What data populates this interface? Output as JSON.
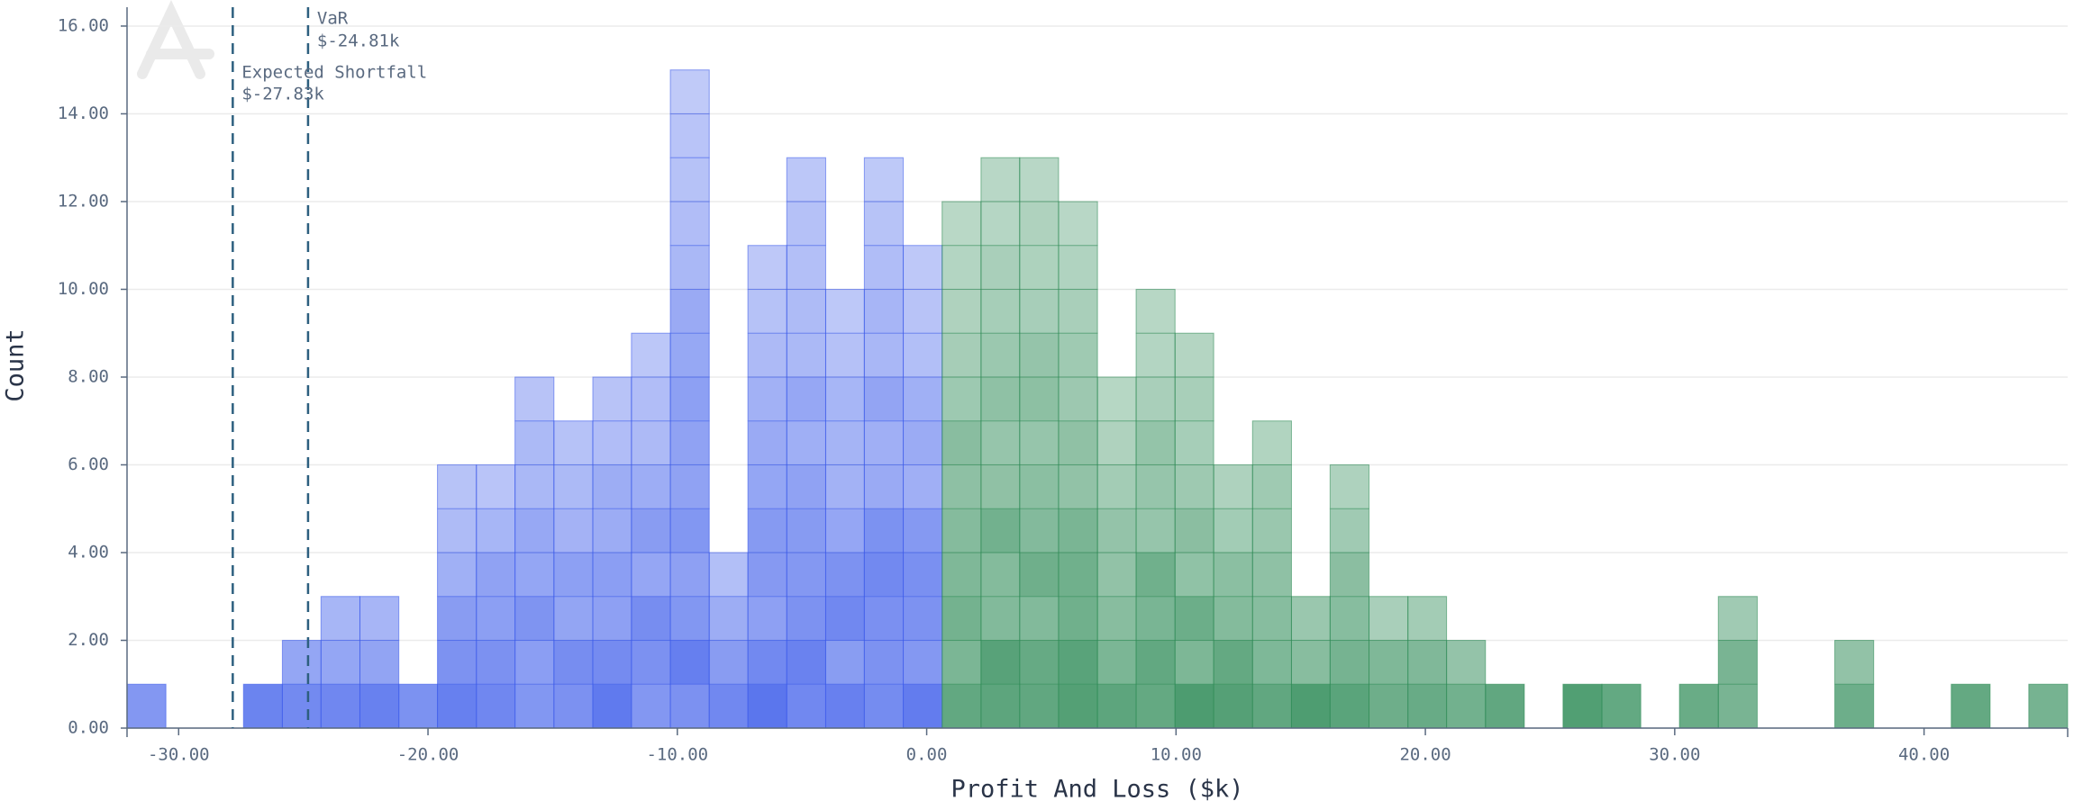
{
  "chart_data": {
    "type": "histogram",
    "x_label": "Profit And Loss ($k)",
    "y_label": "Count",
    "bins": [
      -32.07,
      -30.51,
      -28.96,
      -27.4,
      -25.84,
      -24.29,
      -22.73,
      -21.17,
      -19.62,
      -18.06,
      -16.51,
      -14.95,
      -13.39,
      -11.84,
      -10.28,
      -8.72,
      -7.17,
      -5.61,
      -4.05,
      -2.5,
      -0.94,
      0.62,
      2.18,
      3.73,
      5.29,
      6.85,
      8.4,
      9.96,
      11.51,
      13.07,
      14.63,
      16.18,
      17.74,
      19.3,
      20.85,
      22.41,
      23.97,
      25.52,
      27.08,
      28.64,
      30.19,
      31.75,
      33.31,
      34.86,
      36.42,
      37.98,
      39.53,
      41.09,
      42.65,
      44.2,
      45.76
    ],
    "counts": [
      1,
      0,
      0,
      1,
      2,
      3,
      3,
      1,
      6,
      6,
      8,
      7,
      8,
      9,
      15,
      4,
      11,
      13,
      10,
      13,
      11,
      12,
      13,
      13,
      12,
      8,
      10,
      9,
      6,
      7,
      3,
      6,
      3,
      3,
      2,
      1,
      0,
      1,
      1,
      0,
      1,
      3,
      0,
      0,
      2,
      0,
      0,
      1,
      0,
      1
    ],
    "loss_color": "#3b5bea",
    "profit_color": "#2e8b57",
    "xlim": [
      -32.07,
      45.76
    ],
    "ylim": [
      0,
      16.43
    ],
    "xticks": [
      {
        "value": -30,
        "label": "-30.00"
      },
      {
        "value": -20,
        "label": "-20.00"
      },
      {
        "value": -10,
        "label": "-10.00"
      },
      {
        "value": 0,
        "label": "0.00"
      },
      {
        "value": 10,
        "label": "10.00"
      },
      {
        "value": 20,
        "label": "20.00"
      },
      {
        "value": 30,
        "label": "30.00"
      },
      {
        "value": 40,
        "label": "40.00"
      }
    ],
    "yticks": [
      {
        "value": 0,
        "label": "0.00"
      },
      {
        "value": 2,
        "label": "2.00"
      },
      {
        "value": 4,
        "label": "4.00"
      },
      {
        "value": 6,
        "label": "6.00"
      },
      {
        "value": 8,
        "label": "8.00"
      },
      {
        "value": 10,
        "label": "10.00"
      },
      {
        "value": 12,
        "label": "12.00"
      },
      {
        "value": 14,
        "label": "14.00"
      },
      {
        "value": 16,
        "label": "16.00"
      }
    ],
    "grid": true,
    "annotations": [
      {
        "label": "VaR",
        "value": -24.81,
        "value_label": "$-24.81k"
      },
      {
        "label": "Expected Shortfall",
        "value": -27.83,
        "value_label": "$-27.83k"
      }
    ]
  }
}
